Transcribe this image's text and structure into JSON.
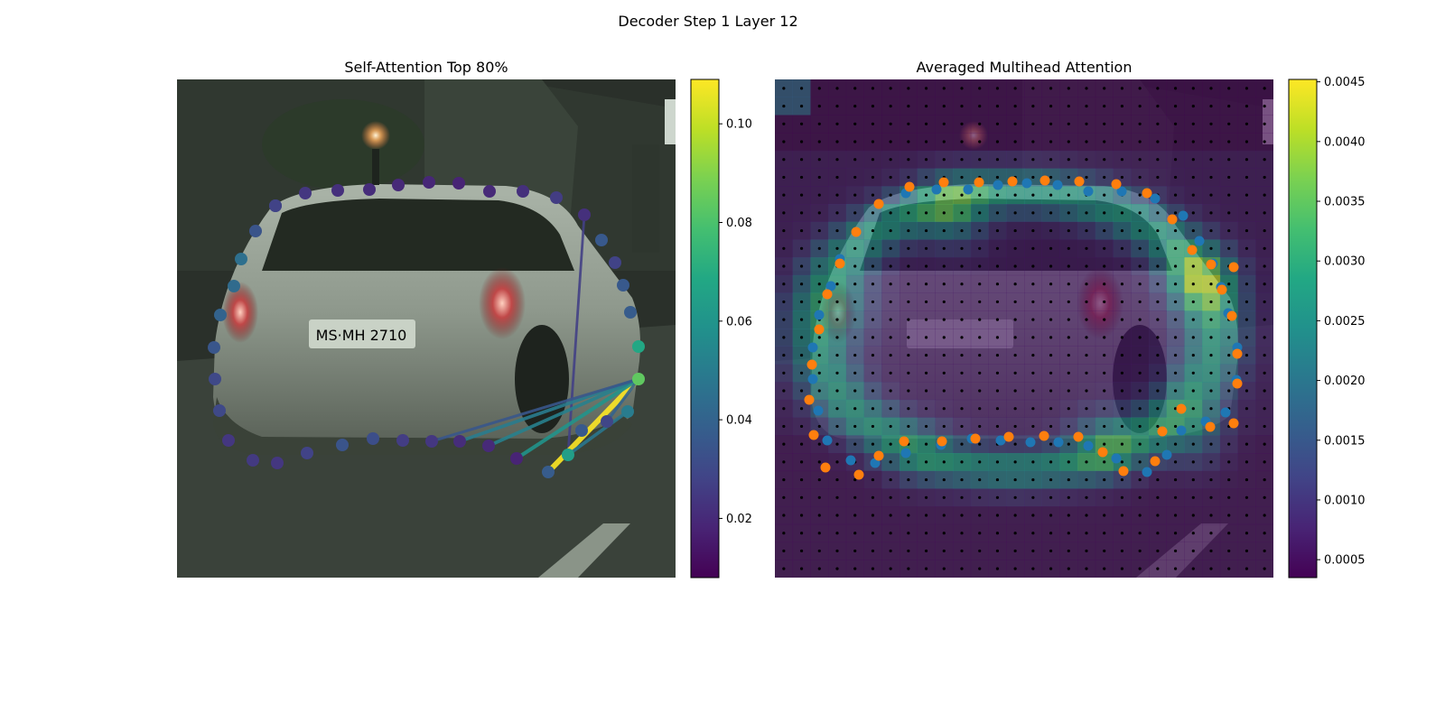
{
  "figure": {
    "title": "Decoder Step 1 Layer 12"
  },
  "chart_data": [
    {
      "type": "scatter",
      "title": "Self-Attention Top 80%",
      "description_of_content": "photo of car rear with polygon vertices colored by attention weight and lines between top-weighted vertex pairs",
      "colormap": "viridis",
      "colorbar": {
        "range": [
          0.008,
          0.109
        ],
        "ticks": [
          0.02,
          0.04,
          0.06,
          0.08,
          0.1
        ],
        "tick_labels": [
          "0.02",
          "0.04",
          "0.06",
          "0.08",
          "0.10"
        ]
      },
      "points": [
        {
          "v": 0.034
        },
        {
          "v": 0.024
        },
        {
          "v": 0.022
        },
        {
          "v": 0.021
        },
        {
          "v": 0.02
        },
        {
          "v": 0.019
        },
        {
          "v": 0.018
        },
        {
          "v": 0.02
        },
        {
          "v": 0.022
        },
        {
          "v": 0.026
        },
        {
          "v": 0.022
        },
        {
          "v": 0.036
        },
        {
          "v": 0.028
        },
        {
          "v": 0.036
        },
        {
          "v": 0.037
        },
        {
          "v": 0.068
        },
        {
          "v": 0.084
        },
        {
          "v": 0.05
        },
        {
          "v": 0.029
        },
        {
          "v": 0.036
        },
        {
          "v": 0.064
        },
        {
          "v": 0.037
        },
        {
          "v": 0.018
        },
        {
          "v": 0.02
        },
        {
          "v": 0.021
        },
        {
          "v": 0.024
        },
        {
          "v": 0.026
        },
        {
          "v": 0.032
        },
        {
          "v": 0.034
        },
        {
          "v": 0.028
        },
        {
          "v": 0.024
        },
        {
          "v": 0.025
        },
        {
          "v": 0.024
        },
        {
          "v": 0.03
        },
        {
          "v": 0.03
        },
        {
          "v": 0.035
        },
        {
          "v": 0.04
        },
        {
          "v": 0.043
        },
        {
          "v": 0.045
        },
        {
          "v": 0.034
        },
        {
          "v": 0.028
        }
      ],
      "edges": [
        {
          "from": 20,
          "to": 10,
          "v": 0.027
        },
        {
          "from": 16,
          "to": 21,
          "v": 0.109
        },
        {
          "from": 16,
          "to": 22,
          "v": 0.06
        },
        {
          "from": 16,
          "to": 23,
          "v": 0.052
        },
        {
          "from": 16,
          "to": 24,
          "v": 0.05
        },
        {
          "from": 17,
          "to": 20,
          "v": 0.048
        },
        {
          "from": 16,
          "to": 18,
          "v": 0.04
        },
        {
          "from": 16,
          "to": 25,
          "v": 0.035
        }
      ]
    },
    {
      "type": "heatmap",
      "title": "Averaged Multihead Attention",
      "description_of_content": "attention heatmap over a 28x28 grid overlaid on the car photo, with predicted points (blue) and reference points (orange)",
      "colormap": "viridis",
      "colorbar": {
        "range": [
          0.00035,
          0.00452
        ],
        "ticks": [
          0.0005,
          0.001,
          0.0015,
          0.002,
          0.0025,
          0.003,
          0.0035,
          0.004,
          0.0045
        ],
        "tick_labels": [
          "0.0005",
          "0.0010",
          "0.0015",
          "0.0020",
          "0.0025",
          "0.0030",
          "0.0035",
          "0.0040",
          "0.0045"
        ]
      },
      "grid_size": [
        28,
        28
      ],
      "series": [
        {
          "color": "#1f77b4",
          "count": 38
        },
        {
          "color": "#ff7f0e",
          "count": 40
        }
      ]
    }
  ]
}
